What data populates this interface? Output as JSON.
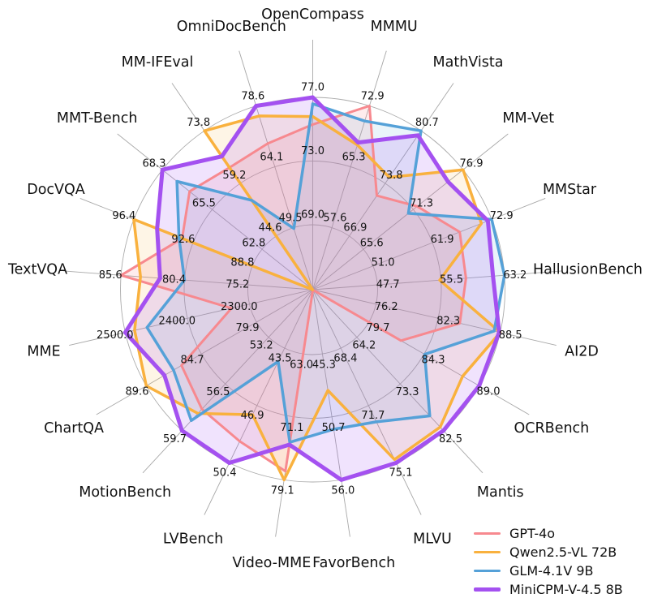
{
  "chart_data": {
    "type": "radar",
    "title": "",
    "grid": {
      "rings": 3,
      "ring_color": "#ababab",
      "spoke_color": "#a8a8a8",
      "background": "#ffffff"
    },
    "legend_position": "bottom-right",
    "axes": [
      {
        "label": "OpenCompass",
        "ticks": [
          "69.0",
          "73.0",
          "77.0"
        ]
      },
      {
        "label": "MMMU",
        "ticks": [
          "57.6",
          "65.3",
          "72.9"
        ]
      },
      {
        "label": "MathVista",
        "ticks": [
          "66.9",
          "73.8",
          "80.7"
        ]
      },
      {
        "label": "MM-Vet",
        "ticks": [
          "65.6",
          "71.3",
          "76.9"
        ]
      },
      {
        "label": "MMStar",
        "ticks": [
          "51.0",
          "61.9",
          "72.9"
        ]
      },
      {
        "label": "HallusionBench",
        "ticks": [
          "47.7",
          "55.5",
          "63.2"
        ]
      },
      {
        "label": "AI2D",
        "ticks": [
          "76.2",
          "82.3",
          "88.5"
        ]
      },
      {
        "label": "OCRBench",
        "ticks": [
          "79.7",
          "84.3",
          "89.0"
        ]
      },
      {
        "label": "Mantis",
        "ticks": [
          "64.2",
          "73.3",
          "82.5"
        ]
      },
      {
        "label": "MLVU",
        "ticks": [
          "68.4",
          "71.7",
          "75.1"
        ]
      },
      {
        "label": "FavorBench",
        "ticks": [
          "45.3",
          "50.7",
          "56.0"
        ]
      },
      {
        "label": "Video-MME",
        "ticks": [
          "63.0",
          "71.1",
          "79.1"
        ]
      },
      {
        "label": "LVBench",
        "ticks": [
          "43.5",
          "46.9",
          "50.4"
        ]
      },
      {
        "label": "MotionBench",
        "ticks": [
          "53.2",
          "56.5",
          "59.7"
        ]
      },
      {
        "label": "ChartQA",
        "ticks": [
          "79.9",
          "84.7",
          "89.6"
        ]
      },
      {
        "label": "MME",
        "ticks": [
          "2300.0",
          "2400.0",
          "2500.0"
        ]
      },
      {
        "label": "TextVQA",
        "ticks": [
          "75.2",
          "80.4",
          "85.6"
        ]
      },
      {
        "label": "DocVQA",
        "ticks": [
          "88.8",
          "92.6",
          "96.4"
        ]
      },
      {
        "label": "MMT-Bench",
        "ticks": [
          "62.8",
          "65.5",
          "68.3"
        ]
      },
      {
        "label": "MM-IFEval",
        "ticks": [
          "44.6",
          "59.2",
          "73.8"
        ]
      },
      {
        "label": "OmniDocBench",
        "ticks": [
          "49.5",
          "64.1",
          "78.6"
        ]
      }
    ],
    "series": [
      {
        "name": "GPT-4o",
        "color": "#F7898F",
        "fill_opacity": 0.16,
        "line_width": 3,
        "values": [
          75.3,
          72.9,
          72.2,
          71.7,
          67.0,
          58.5,
          84.5,
          82.4,
          54.9,
          65.0,
          39.9,
          78.0,
          49.1,
          58.2,
          86.5,
          2329.0,
          85.6,
          93.3,
          66.8,
          63.6,
          69.6
        ]
      },
      {
        "name": "Qwen2.5-VL 72B",
        "color": "#F9B13E",
        "fill_opacity": 0.13,
        "line_width": 3.5,
        "values": [
          75.8,
          68.0,
          74.6,
          76.9,
          71.0,
          55.3,
          88.5,
          87.6,
          81.8,
          74.9,
          48.4,
          79.1,
          47.5,
          58.5,
          89.6,
          2485.0,
          84.0,
          96.4,
          60.0,
          73.8,
          76.2
        ]
      },
      {
        "name": "GLM-4.1V 9B",
        "color": "#55A1D8",
        "fill_opacity": 0.12,
        "line_width": 3.5,
        "values": [
          76.6,
          71.0,
          80.7,
          70.7,
          72.9,
          63.2,
          87.9,
          84.4,
          79.6,
          72.7,
          51.7,
          74.3,
          44.3,
          59.0,
          87.2,
          2465.0,
          80.4,
          93.5,
          67.5,
          54.5,
          49.3
        ]
      },
      {
        "name": "MiniCPM-V-4.5 8B",
        "color": "#A451F0",
        "fill_opacity": 0.16,
        "line_width": 5,
        "values": [
          77.0,
          68.3,
          80.1,
          75.2,
          72.2,
          61.8,
          88.4,
          89.0,
          82.5,
          75.1,
          56.0,
          74.6,
          50.4,
          59.7,
          88.0,
          2500.0,
          82.4,
          94.9,
          68.3,
          66.7,
          78.6
        ]
      }
    ]
  }
}
